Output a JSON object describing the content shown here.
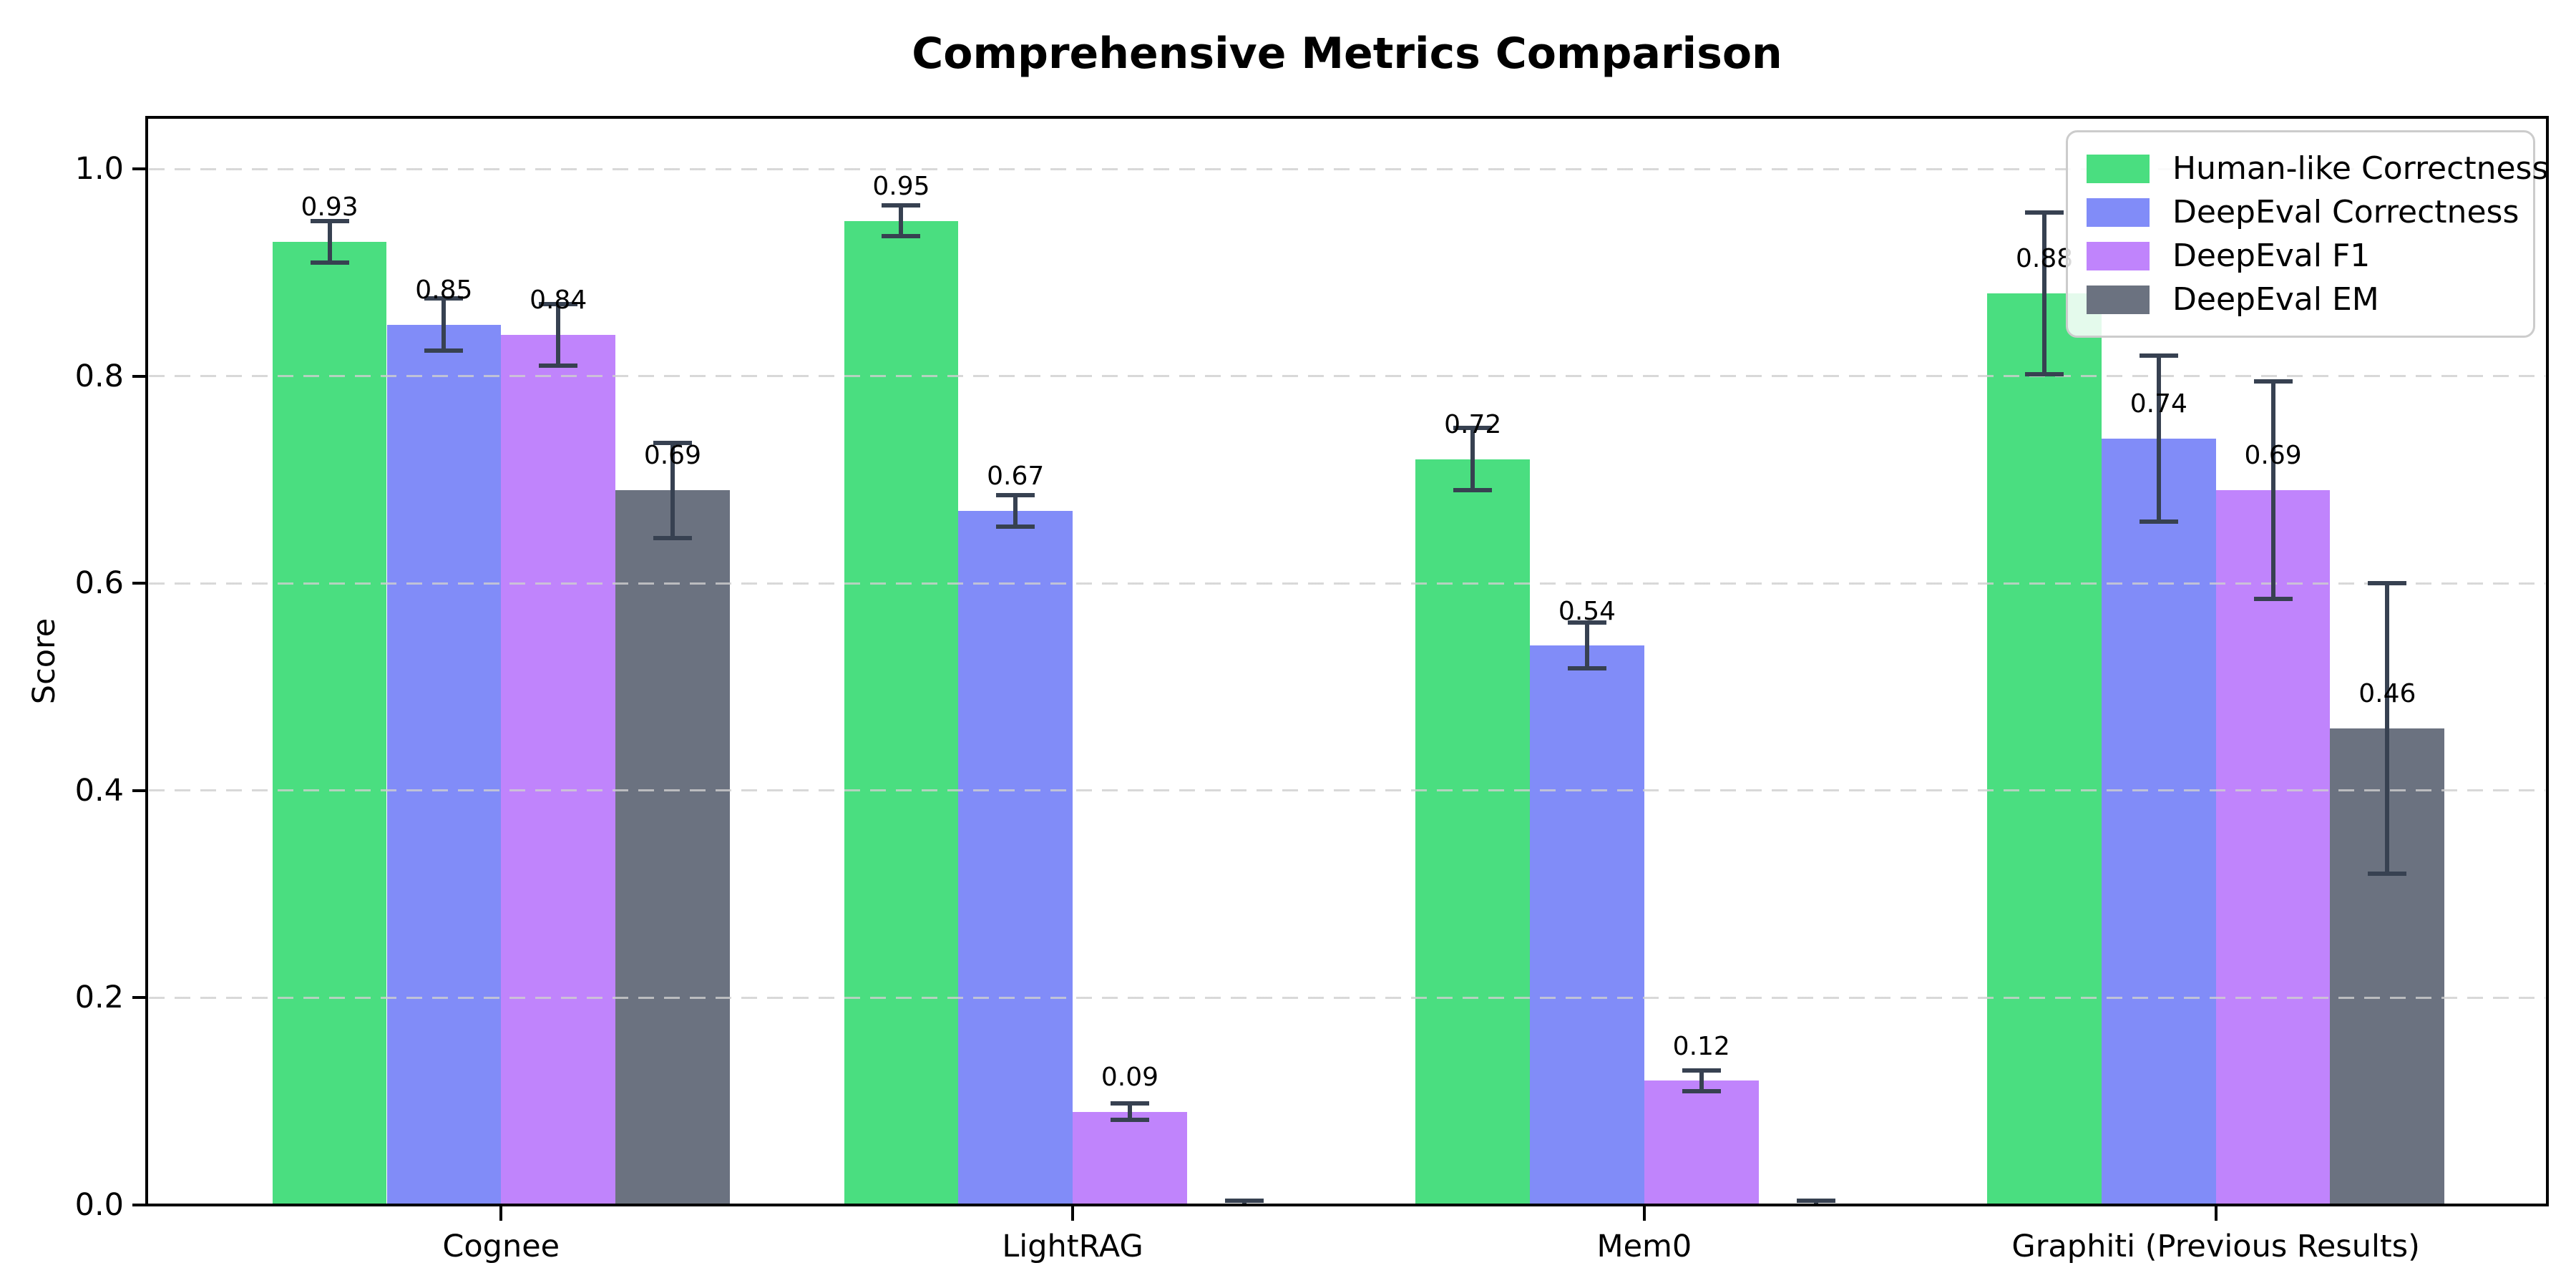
{
  "figure": {
    "background": "#ffffff",
    "spine_color": "#000000",
    "grid_color": "#cfcfcf"
  },
  "chart_data": {
    "type": "bar",
    "title": "Comprehensive Metrics Comparison",
    "xlabel": "",
    "ylabel": "Score",
    "categories": [
      "Cognee",
      "LightRAG",
      "Mem0",
      "Graphiti (Previous Results)"
    ],
    "series": [
      {
        "name": "Human-like Correctness",
        "color": "#4ade80",
        "values": [
          0.93,
          0.95,
          0.72,
          0.88
        ],
        "errors": [
          0.02,
          0.015,
          0.03,
          0.078
        ],
        "bar_labels": [
          "0.93",
          "0.95",
          "0.72",
          "0.88"
        ]
      },
      {
        "name": "DeepEval Correctness",
        "color": "#818cf8",
        "values": [
          0.85,
          0.67,
          0.54,
          0.74
        ],
        "errors": [
          0.025,
          0.015,
          0.022,
          0.08
        ],
        "bar_labels": [
          "0.85",
          "0.67",
          "0.54",
          "0.74"
        ]
      },
      {
        "name": "DeepEval F1",
        "color": "#c084fc",
        "values": [
          0.84,
          0.09,
          0.12,
          0.69
        ],
        "errors": [
          0.03,
          0.008,
          0.01,
          0.105
        ],
        "bar_labels": [
          "0.84",
          "0.09",
          "0.12",
          "0.69"
        ]
      },
      {
        "name": "DeepEval EM",
        "color": "#6b7280",
        "values": [
          0.69,
          0.0,
          0.0,
          0.46
        ],
        "errors": [
          0.046,
          0.004,
          0.004,
          0.14
        ],
        "bar_labels": [
          "0.69",
          "",
          "",
          "0.46"
        ]
      }
    ],
    "error_bar_color": "#374151",
    "ylim": [
      0,
      1.05
    ],
    "yticks": [
      "0.0",
      "0.2",
      "0.4",
      "0.6",
      "0.8",
      "1.0"
    ],
    "grid": true,
    "grid_style": "dashed",
    "legend_position": "upper right"
  }
}
